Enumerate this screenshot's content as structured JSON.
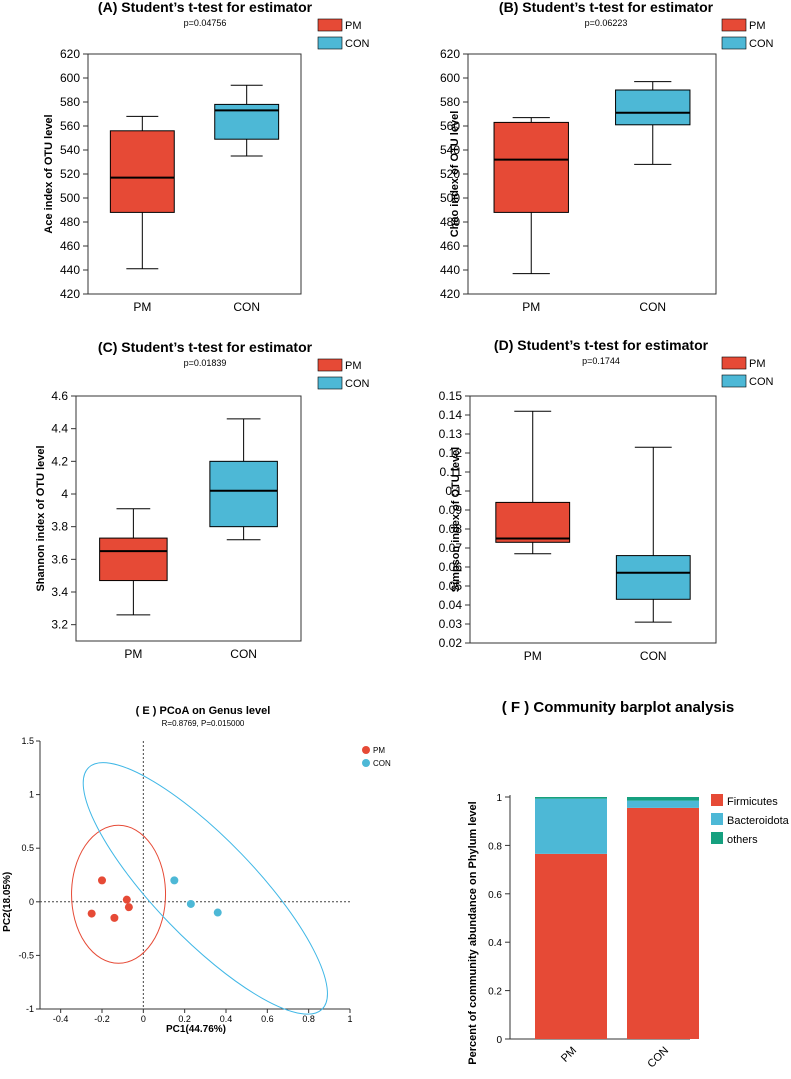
{
  "colors": {
    "pm": "#e64a36",
    "con": "#4db8d6",
    "others": "#16a07f",
    "axis": "#333333",
    "pm_ellipse": "#e64a36",
    "con_ellipse": "#3fb7e6"
  },
  "chart_data": [
    {
      "id": "A",
      "type": "box",
      "title": "(A) Student’s t-test for estimator",
      "subtitle": "p=0.04756",
      "ylabel": "Ace index of OTU level",
      "ylim": [
        420,
        620
      ],
      "yticks": [
        "420",
        "440",
        "460",
        "480",
        "500",
        "520",
        "540",
        "560",
        "580",
        "600",
        "620"
      ],
      "categories": [
        "PM",
        "CON"
      ],
      "legend": [
        "PM",
        "CON"
      ],
      "boxes": [
        {
          "name": "PM",
          "min": 441,
          "q1": 488,
          "median": 517,
          "q3": 556,
          "max": 568
        },
        {
          "name": "CON",
          "min": 535,
          "q1": 549,
          "median": 573,
          "q3": 578,
          "max": 594
        }
      ]
    },
    {
      "id": "B",
      "type": "box",
      "title": "(B) Student’s t-test for estimator",
      "subtitle": "p=0.06223",
      "ylabel": "Chao index of OTU level",
      "ylim": [
        420,
        620
      ],
      "yticks": [
        "420",
        "440",
        "460",
        "480",
        "500",
        "520",
        "540",
        "560",
        "580",
        "600",
        "620"
      ],
      "categories": [
        "PM",
        "CON"
      ],
      "legend": [
        "PM",
        "CON"
      ],
      "boxes": [
        {
          "name": "PM",
          "min": 437,
          "q1": 488,
          "median": 532,
          "q3": 563,
          "max": 567
        },
        {
          "name": "CON",
          "min": 528,
          "q1": 561,
          "median": 571,
          "q3": 590,
          "max": 597
        }
      ]
    },
    {
      "id": "C",
      "type": "box",
      "title": "(C) Student’s t-test for estimator",
      "subtitle": "p=0.01839",
      "ylabel": "Shannon index of OTU level",
      "ylim": [
        3.1,
        4.6
      ],
      "yticks": [
        "3.2",
        "3.4",
        "3.6",
        "3.8",
        "4",
        "4.2",
        "4.4",
        "4.6"
      ],
      "categories": [
        "PM",
        "CON"
      ],
      "legend": [
        "PM",
        "CON"
      ],
      "boxes": [
        {
          "name": "PM",
          "min": 3.26,
          "q1": 3.47,
          "median": 3.65,
          "q3": 3.73,
          "max": 3.91
        },
        {
          "name": "CON",
          "min": 3.72,
          "q1": 3.8,
          "median": 4.02,
          "q3": 4.2,
          "max": 4.46
        }
      ]
    },
    {
      "id": "D",
      "type": "box",
      "title": "(D) Student’s t-test for estimator",
      "subtitle": "p=0.1744",
      "ylabel": "Simpson index of OTU level",
      "ylim": [
        0.02,
        0.15
      ],
      "yticks": [
        "0.02",
        "0.03",
        "0.04",
        "0.05",
        "0.06",
        "0.07",
        "0.08",
        "0.09",
        "0.1",
        "0.11",
        "0.12",
        "0.13",
        "0.14",
        "0.15"
      ],
      "categories": [
        "PM",
        "CON"
      ],
      "legend": [
        "PM",
        "CON"
      ],
      "boxes": [
        {
          "name": "PM",
          "min": 0.067,
          "q1": 0.073,
          "median": 0.075,
          "q3": 0.094,
          "max": 0.142
        },
        {
          "name": "CON",
          "min": 0.031,
          "q1": 0.043,
          "median": 0.057,
          "q3": 0.066,
          "max": 0.123
        }
      ]
    },
    {
      "id": "E",
      "type": "scatter",
      "title": "( E ) PCoA on Genus level",
      "subtitle": "R=0.8769, P=0.015000",
      "xlabel": "PC1(44.76%)",
      "ylabel": "PC2(18.05%)",
      "xlim": [
        -0.5,
        1
      ],
      "ylim": [
        -1,
        1.5
      ],
      "xticks": [
        "-0.4",
        "-0.2",
        "0",
        "0.2",
        "0.4",
        "0.6",
        "0.8",
        "1"
      ],
      "yticks": [
        "-1",
        "-0.5",
        "0",
        "0.5",
        "1",
        "1.5"
      ],
      "legend": [
        "PM",
        "CON"
      ],
      "series": [
        {
          "name": "PM",
          "points": [
            [
              -0.2,
              0.2
            ],
            [
              -0.25,
              -0.11
            ],
            [
              -0.14,
              -0.15
            ],
            [
              -0.08,
              0.02
            ],
            [
              -0.07,
              -0.05
            ]
          ]
        },
        {
          "name": "CON",
          "points": [
            [
              0.15,
              0.2
            ],
            [
              0.23,
              -0.02
            ],
            [
              0.36,
              -0.1
            ]
          ]
        }
      ]
    },
    {
      "id": "F",
      "type": "stacked-bar",
      "title": "( F ) Community barplot analysis",
      "ylabel": "Percent of community abundance on Phylum level",
      "ylim": [
        0,
        1
      ],
      "yticks": [
        "0",
        "0.2",
        "0.4",
        "0.6",
        "0.8",
        "1"
      ],
      "categories": [
        "PM",
        "CON"
      ],
      "series": [
        {
          "name": "Firmicutes",
          "values": [
            0.765,
            0.955
          ]
        },
        {
          "name": "Bacteroidota",
          "values": [
            0.228,
            0.03
          ]
        },
        {
          "name": "others",
          "values": [
            0.007,
            0.015
          ]
        }
      ],
      "legend": [
        "Firmicutes",
        "Bacteroidota",
        "others"
      ]
    }
  ]
}
